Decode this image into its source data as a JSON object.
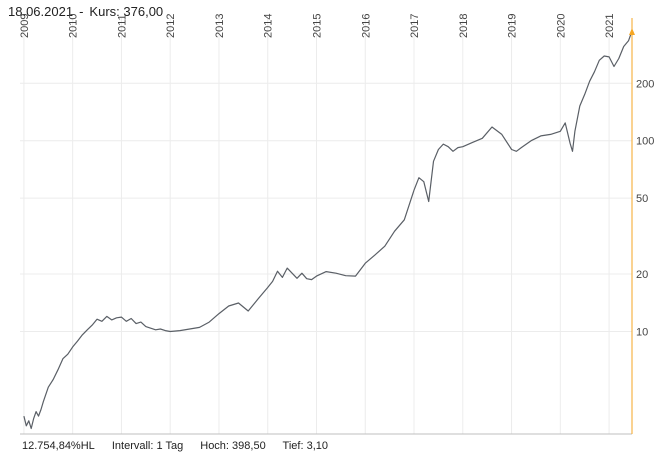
{
  "header": {
    "date": "18.06.2021",
    "separator": "-",
    "price_label": "Kurs:",
    "price_value": "376,00"
  },
  "footer": {
    "performance": "12.754,84%HL",
    "interval": "Intervall: 1 Tag",
    "high": "Hoch:  398,50",
    "low": "Tief:  3,10"
  },
  "colors": {
    "line": "#5a5f66",
    "axis_accent": "#f5a623",
    "grid": "#ececec"
  },
  "chart_data": {
    "type": "line",
    "title": "",
    "xlabel": "",
    "ylabel": "",
    "y_scale": "log",
    "ylim": [
      2.9,
      440
    ],
    "grid": true,
    "legend": "none",
    "x_tick_labels": [
      "2009",
      "2010",
      "2011",
      "2012",
      "2013",
      "2014",
      "2015",
      "2016",
      "2017",
      "2018",
      "2019",
      "2020",
      "2021"
    ],
    "y_tick_values": [
      10,
      20,
      50,
      100,
      200
    ],
    "y_tick_labels": [
      "10",
      "20",
      "50",
      "100",
      "200"
    ],
    "series": [
      {
        "x": [
          2009.0,
          2009.05,
          2009.1,
          2009.15,
          2009.2,
          2009.25,
          2009.3,
          2009.35,
          2009.4,
          2009.5,
          2009.6,
          2009.7,
          2009.8,
          2009.9,
          2010.0,
          2010.1,
          2010.2,
          2010.3,
          2010.4,
          2010.5,
          2010.6,
          2010.7,
          2010.8,
          2010.9,
          2011.0,
          2011.1,
          2011.2,
          2011.3,
          2011.4,
          2011.5,
          2011.6,
          2011.7,
          2011.8,
          2011.9,
          2012.0,
          2012.2,
          2012.4,
          2012.6,
          2012.8,
          2013.0,
          2013.2,
          2013.4,
          2013.6,
          2013.8,
          2014.0,
          2014.1,
          2014.2,
          2014.3,
          2014.4,
          2014.5,
          2014.6,
          2014.7,
          2014.8,
          2014.9,
          2015.0,
          2015.2,
          2015.4,
          2015.6,
          2015.8,
          2016.0,
          2016.2,
          2016.4,
          2016.6,
          2016.8,
          2017.0,
          2017.1,
          2017.2,
          2017.3,
          2017.4,
          2017.5,
          2017.6,
          2017.7,
          2017.8,
          2017.9,
          2018.0,
          2018.2,
          2018.4,
          2018.6,
          2018.8,
          2019.0,
          2019.1,
          2019.2,
          2019.4,
          2019.6,
          2019.8,
          2020.0,
          2020.1,
          2020.2,
          2020.25,
          2020.3,
          2020.4,
          2020.5,
          2020.6,
          2020.7,
          2020.8,
          2020.9,
          2021.0,
          2021.1,
          2021.2,
          2021.3,
          2021.4,
          2021.47
        ],
        "y": [
          3.6,
          3.2,
          3.4,
          3.1,
          3.5,
          3.8,
          3.6,
          3.9,
          4.3,
          5.1,
          5.6,
          6.3,
          7.2,
          7.6,
          8.3,
          8.9,
          9.6,
          10.2,
          10.8,
          11.6,
          11.3,
          12.0,
          11.5,
          11.8,
          11.9,
          11.3,
          11.7,
          11.0,
          11.2,
          10.6,
          10.4,
          10.2,
          10.3,
          10.1,
          10.0,
          10.1,
          10.3,
          10.5,
          11.2,
          12.4,
          13.6,
          14.1,
          12.8,
          14.8,
          17.0,
          18.3,
          20.7,
          19.2,
          21.5,
          20.2,
          19.0,
          20.2,
          18.9,
          18.7,
          19.5,
          20.6,
          20.2,
          19.6,
          19.5,
          22.8,
          25.2,
          28.0,
          33.5,
          38.5,
          55.0,
          64.0,
          61.0,
          48.0,
          78.0,
          90.0,
          96.0,
          93.0,
          88.0,
          92.0,
          93.0,
          98.0,
          103.0,
          118.0,
          108.0,
          90.0,
          88.0,
          92.0,
          100.0,
          106.0,
          108.0,
          112.0,
          124.0,
          97.0,
          88.0,
          112.0,
          152.0,
          175.0,
          205.0,
          230.0,
          264.0,
          278.0,
          275.0,
          245.0,
          270.0,
          312.0,
          335.0,
          376.0
        ]
      }
    ]
  }
}
